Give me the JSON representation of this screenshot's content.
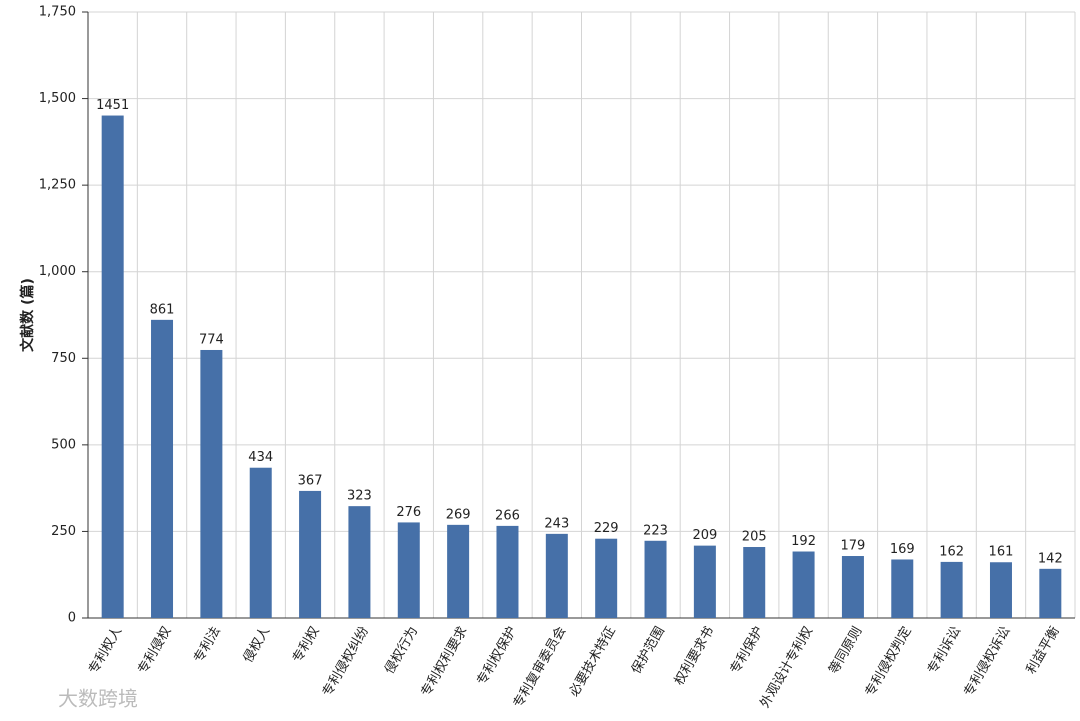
{
  "chart_data": {
    "type": "bar",
    "y_label": "文献数 (篇)",
    "watermark": "大数跨境",
    "categories": [
      "专利权人",
      "专利侵权",
      "专利法",
      "侵权人",
      "专利权",
      "专利侵权纠纷",
      "侵权行为",
      "专利权利要求",
      "专利权保护",
      "专利复审委员会",
      "必要技术特征",
      "保护范围",
      "权利要求书",
      "专利保护",
      "外观设计专利权",
      "等同原则",
      "专利侵权判定",
      "专利诉讼",
      "专利侵权诉讼",
      "利益平衡"
    ],
    "values": [
      1451,
      861,
      774,
      434,
      367,
      323,
      276,
      269,
      266,
      243,
      229,
      223,
      209,
      205,
      192,
      179,
      169,
      162,
      161,
      142
    ],
    "color": "#4670a8",
    "ylim": [
      0,
      1750
    ],
    "yticks": [
      0,
      250,
      500,
      750,
      {
        "value": 1000,
        "label": "1,000"
      },
      {
        "value": 1250,
        "label": "1,250"
      },
      {
        "value": 1500,
        "label": "1,500"
      },
      {
        "value": 1750,
        "label": "1,750"
      }
    ],
    "grid": true
  }
}
